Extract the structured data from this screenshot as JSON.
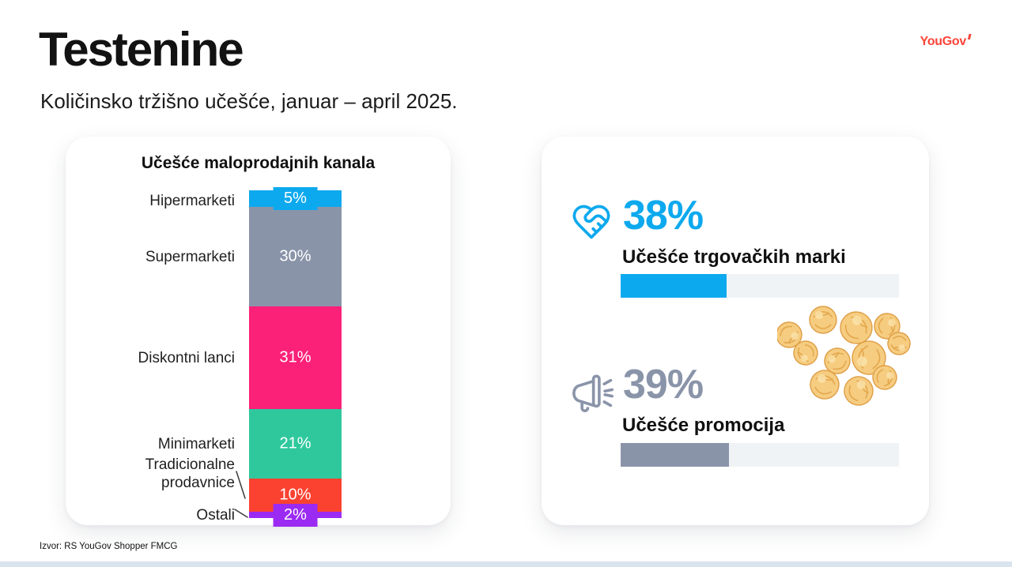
{
  "header": {
    "title": "Testenine",
    "subtitle": "Količinsko tržišno učešće, januar – april 2025.",
    "logo": "YouGov"
  },
  "source": {
    "text": "Izvor: RS YouGov Shopper FMCG"
  },
  "chart_data": [
    {
      "type": "bar",
      "variant": "stacked-column",
      "title": "Učešće maloprodajnih kanala",
      "unit": "%",
      "categories": [
        "Hipermarketi",
        "Supermarketi",
        "Diskontni lanci",
        "Minimarketi",
        "Tradicionalne prodavnice",
        "Ostali"
      ],
      "values": [
        5,
        30,
        31,
        21,
        10,
        2
      ],
      "labels": [
        "5%",
        "30%",
        "31%",
        "21%",
        "10%",
        "2%"
      ],
      "colors": [
        "#0DA9EE",
        "#8A94A9",
        "#FB2078",
        "#2FC89D",
        "#FB4231",
        "#9B2BF2"
      ],
      "legend": false,
      "axes": false
    },
    {
      "type": "bar",
      "variant": "progress",
      "categories": [
        "Učešće trgovačkih marki",
        "Učešće promocija"
      ],
      "values": [
        38,
        39
      ],
      "unit": "%",
      "xlim": [
        0,
        100
      ],
      "colors": [
        "#0DA9EE",
        "#8A94A9"
      ]
    }
  ],
  "kpis": [
    {
      "icon": "heart-handshake-icon",
      "value": "38%",
      "label": "Učešće trgovačkih marki",
      "percent": 38,
      "color": "#0DA9EE"
    },
    {
      "icon": "megaphone-icon",
      "value": "39%",
      "label": "Učešće promocija",
      "percent": 39,
      "color": "#8A94A9"
    }
  ]
}
